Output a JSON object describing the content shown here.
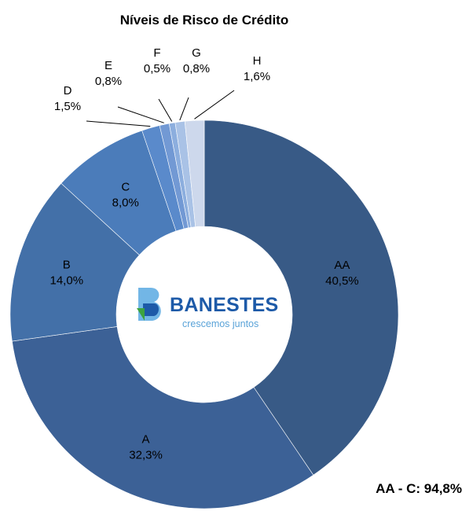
{
  "chart_data": {
    "type": "pie",
    "title": "Níveis de Risco de Crédito",
    "annotation": "AA - C: 94,8%",
    "categories": [
      "AA",
      "A",
      "B",
      "C",
      "D",
      "E",
      "F",
      "G",
      "H"
    ],
    "values": [
      40.5,
      32.3,
      14.0,
      8.0,
      1.5,
      0.8,
      0.5,
      0.8,
      1.6
    ],
    "value_labels": [
      "40,5%",
      "32,3%",
      "14,0%",
      "8,0%",
      "1,5%",
      "0,8%",
      "0,5%",
      "0,8%",
      "1,6%"
    ],
    "colors": [
      "#385a86",
      "#3c6196",
      "#4370a8",
      "#4b7cba",
      "#5a8acb",
      "#7299d4",
      "#8caede",
      "#a9c2e6",
      "#cdd8ec"
    ],
    "legend": "none",
    "hole": "logo"
  },
  "logo": {
    "name": "BANESTES",
    "tagline": "crescemos juntos"
  }
}
